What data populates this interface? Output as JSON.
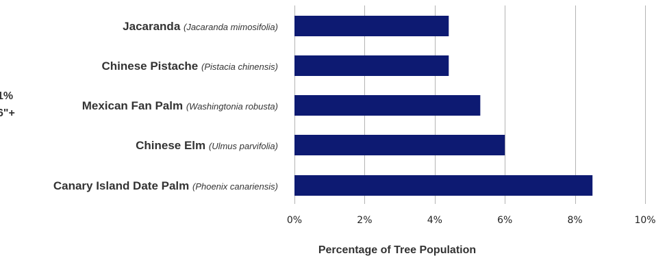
{
  "chart_data": {
    "type": "bar",
    "orientation": "horizontal",
    "categories": [
      {
        "common": "Jacaranda",
        "scientific": "(Jacaranda mimosifolia)"
      },
      {
        "common": "Chinese Pistache",
        "scientific": "(Pistacia chinensis)"
      },
      {
        "common": "Mexican Fan Palm",
        "scientific": "(Washingtonia robusta)"
      },
      {
        "common": "Chinese Elm",
        "scientific": "(Ulmus parvifolia)"
      },
      {
        "common": "Canary Island Date Palm",
        "scientific": "(Phoenix canariensis)"
      }
    ],
    "values": [
      4.4,
      4.4,
      5.3,
      6.0,
      8.5
    ],
    "xlim": [
      0,
      10
    ],
    "xticks": [
      0,
      2,
      4,
      6,
      8,
      10
    ],
    "tick_suffix": "%",
    "xlabel": "Percentage of Tree Population",
    "bar_color": "#0d1a72",
    "grid": "vertical",
    "partial_labels": [
      "1%",
      "6\"+"
    ]
  }
}
